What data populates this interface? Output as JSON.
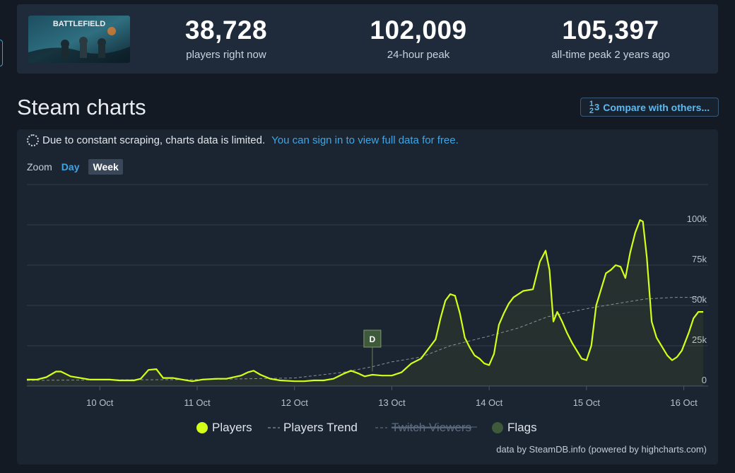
{
  "header": {
    "game_thumbnail_text": "BATTLEFIELD",
    "stats": [
      {
        "value": "38,728",
        "label": "players right now"
      },
      {
        "value": "102,009",
        "label": "24-hour peak"
      },
      {
        "value": "105,397",
        "label": "all-time peak 2 years ago"
      }
    ]
  },
  "section": {
    "title": "Steam charts",
    "compare_label": "Compare with others...",
    "compare_icon_top": "1",
    "compare_icon_bottom": "2",
    "compare_icon_right": "3"
  },
  "notice": {
    "text": "Due to constant scraping, charts data is limited.",
    "link": "You can sign in to view full data for free."
  },
  "zoom": {
    "label": "Zoom",
    "options": [
      "Day",
      "Week"
    ],
    "selected": "Week"
  },
  "colors": {
    "players": "#d4ff19",
    "trend": "#8a9199",
    "twitch": "#5a6b7f",
    "flags": "#3e5a3a",
    "grid": "#323d4d"
  },
  "chart_data": {
    "type": "line",
    "x_unit": "days (October), continuous",
    "xlim": [
      9.25,
      16.25
    ],
    "ylim": [
      0,
      125000
    ],
    "y_ticks": [
      0,
      25000,
      50000,
      75000,
      100000
    ],
    "y_tick_labels": [
      "0",
      "25k",
      "50k",
      "75k",
      "100k"
    ],
    "x_ticks": [
      10,
      11,
      12,
      13,
      14,
      15,
      16
    ],
    "x_tick_labels": [
      "10 Oct",
      "11 Oct",
      "12 Oct",
      "13 Oct",
      "14 Oct",
      "15 Oct",
      "16 Oct"
    ],
    "grid": true,
    "legend_position": "bottom-center",
    "series": [
      {
        "name": "Players",
        "style": "solid",
        "points": [
          [
            9.25,
            4000
          ],
          [
            9.35,
            4000
          ],
          [
            9.45,
            5500
          ],
          [
            9.55,
            9000
          ],
          [
            9.6,
            9000
          ],
          [
            9.7,
            6000
          ],
          [
            9.8,
            5000
          ],
          [
            9.9,
            4000
          ],
          [
            10.0,
            4000
          ],
          [
            10.1,
            4000
          ],
          [
            10.2,
            3500
          ],
          [
            10.35,
            3500
          ],
          [
            10.42,
            4500
          ],
          [
            10.5,
            10000
          ],
          [
            10.58,
            10500
          ],
          [
            10.65,
            5000
          ],
          [
            10.75,
            5000
          ],
          [
            10.85,
            4000
          ],
          [
            10.95,
            3000
          ],
          [
            11.05,
            4000
          ],
          [
            11.2,
            4500
          ],
          [
            11.3,
            4500
          ],
          [
            11.45,
            6500
          ],
          [
            11.52,
            8500
          ],
          [
            11.58,
            9500
          ],
          [
            11.65,
            7000
          ],
          [
            11.75,
            4500
          ],
          [
            11.85,
            3500
          ],
          [
            12.0,
            3000
          ],
          [
            12.1,
            3000
          ],
          [
            12.2,
            3500
          ],
          [
            12.3,
            3500
          ],
          [
            12.4,
            4500
          ],
          [
            12.5,
            7500
          ],
          [
            12.58,
            9500
          ],
          [
            12.65,
            8000
          ],
          [
            12.72,
            6000
          ],
          [
            12.8,
            7000
          ],
          [
            12.9,
            6500
          ],
          [
            13.0,
            6500
          ],
          [
            13.1,
            8500
          ],
          [
            13.2,
            14000
          ],
          [
            13.3,
            17000
          ],
          [
            13.4,
            25000
          ],
          [
            13.45,
            29000
          ],
          [
            13.5,
            42000
          ],
          [
            13.55,
            53000
          ],
          [
            13.6,
            57000
          ],
          [
            13.65,
            56000
          ],
          [
            13.7,
            45000
          ],
          [
            13.75,
            30000
          ],
          [
            13.8,
            24000
          ],
          [
            13.85,
            19000
          ],
          [
            13.9,
            17000
          ],
          [
            13.95,
            14000
          ],
          [
            14.0,
            13000
          ],
          [
            14.05,
            20000
          ],
          [
            14.1,
            38000
          ],
          [
            14.15,
            45000
          ],
          [
            14.2,
            51000
          ],
          [
            14.25,
            55000
          ],
          [
            14.35,
            59000
          ],
          [
            14.45,
            60000
          ],
          [
            14.52,
            77000
          ],
          [
            14.58,
            84000
          ],
          [
            14.62,
            72000
          ],
          [
            14.66,
            40000
          ],
          [
            14.7,
            46000
          ],
          [
            14.75,
            40000
          ],
          [
            14.8,
            33000
          ],
          [
            14.85,
            27000
          ],
          [
            14.9,
            22000
          ],
          [
            14.95,
            17000
          ],
          [
            15.0,
            16000
          ],
          [
            15.05,
            25000
          ],
          [
            15.1,
            50000
          ],
          [
            15.15,
            60000
          ],
          [
            15.2,
            70000
          ],
          [
            15.25,
            72000
          ],
          [
            15.3,
            75000
          ],
          [
            15.35,
            74000
          ],
          [
            15.4,
            67000
          ],
          [
            15.45,
            83000
          ],
          [
            15.5,
            95000
          ],
          [
            15.55,
            103000
          ],
          [
            15.58,
            102000
          ],
          [
            15.62,
            80000
          ],
          [
            15.67,
            40000
          ],
          [
            15.72,
            30000
          ],
          [
            15.78,
            24000
          ],
          [
            15.83,
            19000
          ],
          [
            15.88,
            16000
          ],
          [
            15.93,
            18000
          ],
          [
            15.98,
            22000
          ],
          [
            16.05,
            33000
          ],
          [
            16.1,
            42000
          ],
          [
            16.15,
            46000
          ],
          [
            16.2,
            46000
          ]
        ]
      },
      {
        "name": "Players Trend",
        "style": "dashed",
        "points": [
          [
            9.25,
            3500
          ],
          [
            10.0,
            3800
          ],
          [
            11.0,
            4000
          ],
          [
            12.0,
            5000
          ],
          [
            12.5,
            8500
          ],
          [
            12.8,
            12000
          ],
          [
            13.0,
            15000
          ],
          [
            13.3,
            18000
          ],
          [
            13.6,
            25000
          ],
          [
            14.0,
            31000
          ],
          [
            14.3,
            36000
          ],
          [
            14.6,
            43000
          ],
          [
            15.0,
            48000
          ],
          [
            15.3,
            51000
          ],
          [
            15.6,
            54000
          ],
          [
            15.9,
            55000
          ],
          [
            16.2,
            55000
          ]
        ]
      }
    ],
    "legend": [
      {
        "name": "Players",
        "style": "dot"
      },
      {
        "name": "Players Trend",
        "style": "dashed"
      },
      {
        "name": "Twitch Viewers",
        "style": "disabled"
      },
      {
        "name": "Flags",
        "style": "dot"
      }
    ],
    "flags": [
      {
        "x": 12.8,
        "text": "D"
      }
    ]
  },
  "credit": "data by SteamDB.info (powered by highcharts.com)"
}
